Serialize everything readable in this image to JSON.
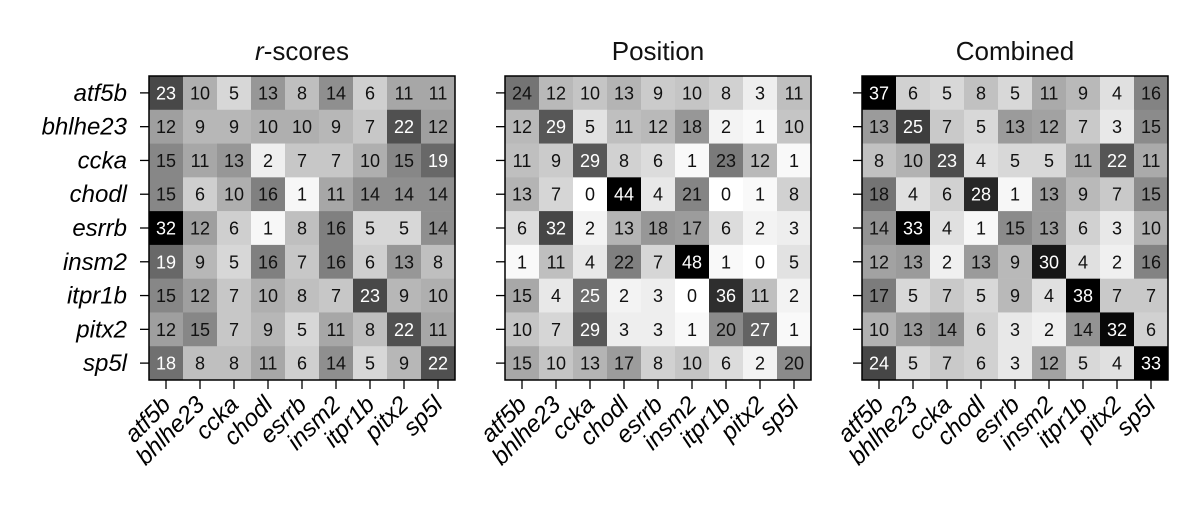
{
  "chart_data": [
    {
      "type": "heatmap",
      "title_prefix": "r",
      "title": "-scores",
      "rows": [
        "atf5b",
        "bhlhe23",
        "ccka",
        "chodl",
        "esrrb",
        "insm2",
        "itpr1b",
        "pitx2",
        "sp5l"
      ],
      "cols": [
        "atf5b",
        "bhlhe23",
        "ccka",
        "chodl",
        "esrrb",
        "insm2",
        "itpr1b",
        "pitx2",
        "sp5l"
      ],
      "vmax": 32,
      "values": [
        [
          23,
          10,
          5,
          13,
          8,
          14,
          6,
          11,
          11
        ],
        [
          12,
          9,
          9,
          10,
          10,
          9,
          7,
          22,
          12
        ],
        [
          15,
          11,
          13,
          2,
          7,
          7,
          10,
          15,
          19
        ],
        [
          15,
          6,
          10,
          16,
          1,
          11,
          14,
          14,
          14
        ],
        [
          32,
          12,
          6,
          1,
          8,
          16,
          5,
          5,
          14
        ],
        [
          19,
          9,
          5,
          16,
          7,
          16,
          6,
          13,
          8
        ],
        [
          15,
          12,
          7,
          10,
          8,
          7,
          23,
          9,
          10
        ],
        [
          12,
          15,
          7,
          9,
          5,
          11,
          8,
          22,
          11
        ],
        [
          18,
          8,
          8,
          11,
          6,
          14,
          5,
          9,
          22
        ]
      ]
    },
    {
      "type": "heatmap",
      "title_prefix": "",
      "title": "Position",
      "rows": [
        "atf5b",
        "bhlhe23",
        "ccka",
        "chodl",
        "esrrb",
        "insm2",
        "itpr1b",
        "pitx2",
        "sp5l"
      ],
      "cols": [
        "atf5b",
        "bhlhe23",
        "ccka",
        "chodl",
        "esrrb",
        "insm2",
        "itpr1b",
        "pitx2",
        "sp5l"
      ],
      "vmax": 44,
      "values": [
        [
          24,
          12,
          10,
          13,
          9,
          10,
          8,
          3,
          11
        ],
        [
          12,
          29,
          5,
          11,
          12,
          18,
          2,
          1,
          10
        ],
        [
          11,
          9,
          29,
          8,
          6,
          1,
          23,
          12,
          1
        ],
        [
          13,
          7,
          0,
          44,
          4,
          21,
          0,
          1,
          8
        ],
        [
          6,
          32,
          2,
          13,
          18,
          17,
          6,
          2,
          3
        ],
        [
          1,
          11,
          4,
          22,
          7,
          48,
          1,
          0,
          5
        ],
        [
          15,
          4,
          25,
          2,
          3,
          0,
          36,
          11,
          2
        ],
        [
          10,
          7,
          29,
          3,
          3,
          1,
          20,
          27,
          1
        ],
        [
          15,
          10,
          13,
          17,
          8,
          10,
          6,
          2,
          20
        ]
      ]
    },
    {
      "type": "heatmap",
      "title_prefix": "",
      "title": "Combined",
      "rows": [
        "atf5b",
        "bhlhe23",
        "ccka",
        "chodl",
        "esrrb",
        "insm2",
        "itpr1b",
        "pitx2",
        "sp5l"
      ],
      "cols": [
        "atf5b",
        "bhlhe23",
        "ccka",
        "chodl",
        "esrrb",
        "insm2",
        "itpr1b",
        "pitx2",
        "sp5l"
      ],
      "vmax": 33,
      "values": [
        [
          37,
          6,
          5,
          8,
          5,
          11,
          9,
          4,
          16
        ],
        [
          13,
          25,
          7,
          5,
          13,
          12,
          7,
          3,
          15
        ],
        [
          8,
          10,
          23,
          4,
          5,
          5,
          11,
          22,
          11
        ],
        [
          18,
          4,
          6,
          28,
          1,
          13,
          9,
          7,
          15
        ],
        [
          14,
          33,
          4,
          1,
          15,
          13,
          6,
          3,
          10
        ],
        [
          12,
          13,
          2,
          13,
          9,
          30,
          4,
          2,
          16
        ],
        [
          17,
          5,
          7,
          5,
          9,
          4,
          38,
          7,
          7
        ],
        [
          10,
          13,
          14,
          6,
          3,
          2,
          14,
          32,
          6
        ],
        [
          24,
          5,
          7,
          6,
          3,
          12,
          5,
          4,
          33
        ]
      ]
    }
  ]
}
